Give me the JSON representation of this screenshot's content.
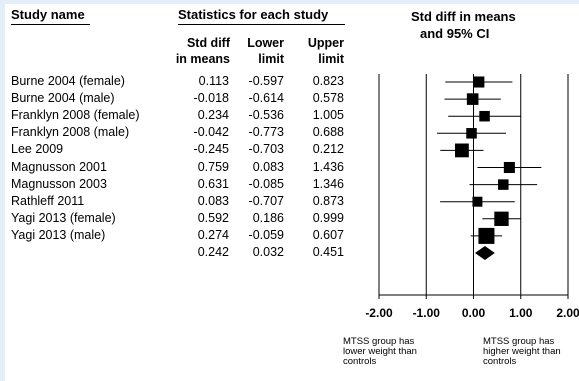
{
  "headers": {
    "study_name": "Study name",
    "statistics": "Statistics for each study",
    "col_smd_1": "Std diff",
    "col_smd_2": "in means",
    "col_lower_1": "Lower",
    "col_lower_2": "limit",
    "col_upper_1": "Upper",
    "col_upper_2": "limit",
    "ci_1": "Std diff in means",
    "ci_2": "and 95% CI"
  },
  "rows": [
    {
      "name": "Burne 2004  (female)",
      "smd": "0.113",
      "lower": "-0.597",
      "upper": "0.823"
    },
    {
      "name": "Burne 2004 (male)",
      "smd": "-0.018",
      "lower": "-0.614",
      "upper": "0.578"
    },
    {
      "name": "Franklyn 2008 (female)",
      "smd": "0.234",
      "lower": "-0.536",
      "upper": "1.005"
    },
    {
      "name": "Franklyn 2008 (male)",
      "smd": "-0.042",
      "lower": "-0.773",
      "upper": "0.688"
    },
    {
      "name": "Lee 2009",
      "smd": "-0.245",
      "lower": "-0.703",
      "upper": "0.212"
    },
    {
      "name": "Magnusson 2001",
      "smd": "0.759",
      "lower": "0.083",
      "upper": "1.436"
    },
    {
      "name": "Magnusson 2003",
      "smd": "0.631",
      "lower": "-0.085",
      "upper": "1.346"
    },
    {
      "name": "Rathleff 2011",
      "smd": "0.083",
      "lower": "-0.707",
      "upper": "0.873"
    },
    {
      "name": "Yagi 2013 (female)",
      "smd": "0.592",
      "lower": "0.186",
      "upper": "0.999"
    },
    {
      "name": "Yagi 2013 (male)",
      "smd": "0.274",
      "lower": "-0.059",
      "upper": "0.607"
    }
  ],
  "summary": {
    "name": "",
    "smd": "0.242",
    "lower": "0.032",
    "upper": "0.451"
  },
  "notes": {
    "left": [
      "MTSS group has",
      "lower weight than",
      "controls"
    ],
    "right": [
      "MTSS group has",
      "higher weight than",
      "controls"
    ]
  },
  "chart_data": {
    "type": "forest",
    "x_ticks": [
      "-2.00",
      "-1.00",
      "0.00",
      "1.00",
      "2.00"
    ],
    "xlim": [
      -2,
      2
    ],
    "studies": [
      {
        "estimate": 0.113,
        "lower": -0.597,
        "upper": 0.823,
        "relative_weight": 0.55
      },
      {
        "estimate": -0.018,
        "lower": -0.614,
        "upper": 0.578,
        "relative_weight": 0.6
      },
      {
        "estimate": 0.234,
        "lower": -0.536,
        "upper": 1.005,
        "relative_weight": 0.5
      },
      {
        "estimate": -0.042,
        "lower": -0.773,
        "upper": 0.688,
        "relative_weight": 0.5
      },
      {
        "estimate": -0.245,
        "lower": -0.703,
        "upper": 0.212,
        "relative_weight": 0.8
      },
      {
        "estimate": 0.759,
        "lower": 0.083,
        "upper": 1.436,
        "relative_weight": 0.55
      },
      {
        "estimate": 0.631,
        "lower": -0.085,
        "upper": 1.346,
        "relative_weight": 0.5
      },
      {
        "estimate": 0.083,
        "lower": -0.707,
        "upper": 0.873,
        "relative_weight": 0.45
      },
      {
        "estimate": 0.592,
        "lower": 0.186,
        "upper": 0.999,
        "relative_weight": 0.85
      },
      {
        "estimate": 0.274,
        "lower": -0.059,
        "upper": 0.607,
        "relative_weight": 1.0
      }
    ],
    "summary": {
      "estimate": 0.242,
      "lower": 0.032,
      "upper": 0.451
    }
  }
}
